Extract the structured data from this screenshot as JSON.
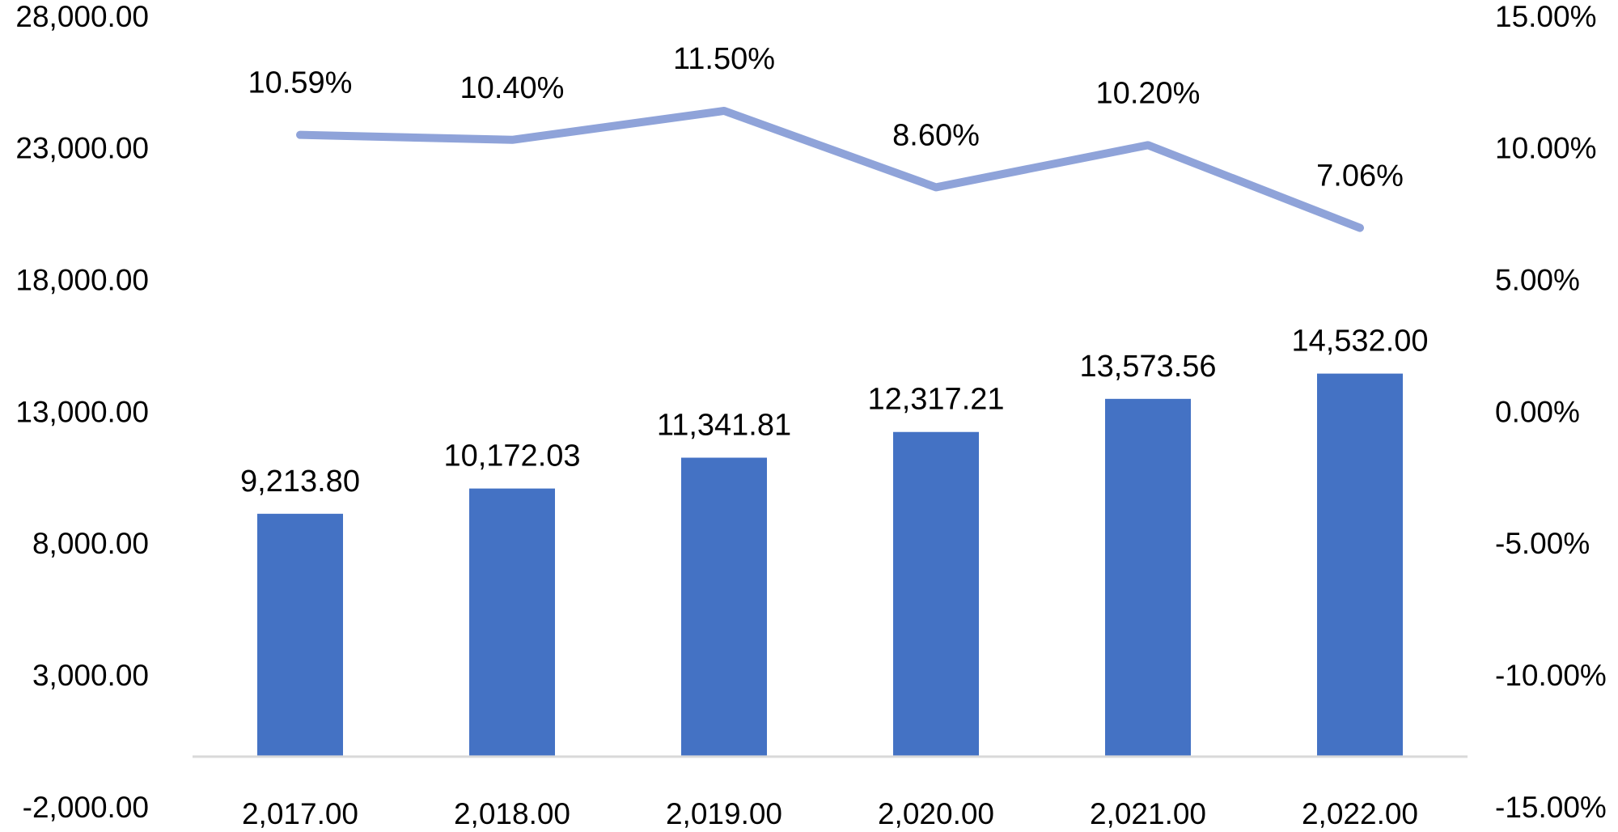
{
  "chart_data": {
    "type": "bar",
    "categories": [
      "2,017.00",
      "2,018.00",
      "2,019.00",
      "2,020.00",
      "2,021.00",
      "2,022.00"
    ],
    "series": [
      {
        "type": "bar",
        "axis": "left",
        "values": [
          9213.8,
          10172.03,
          11341.81,
          12317.21,
          13573.56,
          14532.0
        ],
        "labels": [
          "9,213.80",
          "10,172.03",
          "11,341.81",
          "12,317.21",
          "13,573.56",
          "14,532.00"
        ],
        "color": "#4472C4"
      },
      {
        "type": "line",
        "axis": "right",
        "values": [
          10.59,
          10.4,
          11.5,
          8.6,
          10.2,
          7.06
        ],
        "labels": [
          "10.59%",
          "10.40%",
          "11.50%",
          "8.60%",
          "10.20%",
          "7.06%"
        ],
        "color": "#8FA3D9"
      }
    ],
    "y_left": {
      "ylim": [
        -2000,
        28000
      ],
      "ticks": [
        -2000,
        3000,
        8000,
        13000,
        18000,
        23000,
        28000
      ],
      "tick_labels": [
        "-2,000.00",
        "3,000.00",
        "8,000.00",
        "13,000.00",
        "18,000.00",
        "23,000.00",
        "28,000.00"
      ]
    },
    "y_right": {
      "ylim": [
        -15,
        15
      ],
      "ticks": [
        -15,
        -10,
        -5,
        0,
        5,
        10,
        15
      ],
      "tick_labels": [
        "-15.00%",
        "-10.00%",
        "-5.00%",
        "0.00%",
        "5.00%",
        "10.00%",
        "15.00%"
      ]
    },
    "baseline_color": "#D9D9D9",
    "grid": false,
    "legend": "none"
  }
}
